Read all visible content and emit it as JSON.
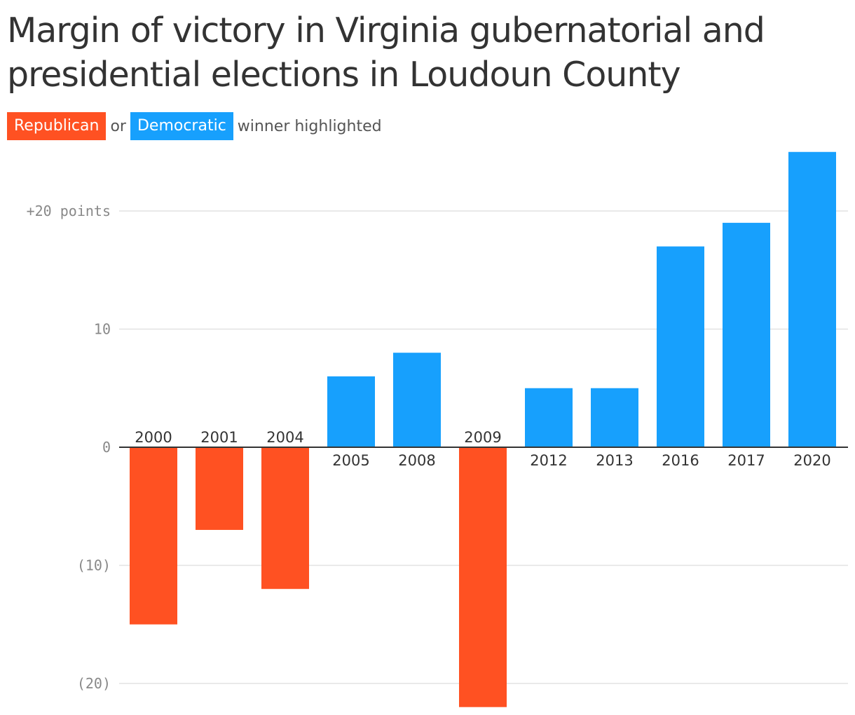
{
  "title": "Margin of victory in Virginia gubernatorial and presidential elections in Loudoun County",
  "legend": {
    "republican_label": "Republican",
    "or_text": "or",
    "democratic_label": "Democratic",
    "suffix_text": "winner highlighted"
  },
  "colors": {
    "republican": "#ff5122",
    "democratic": "#17a0fd",
    "grid": "#e2e2e2",
    "axis": "#333333"
  },
  "chart_data": {
    "type": "bar",
    "categories": [
      "2000",
      "2001",
      "2004",
      "2005",
      "2008",
      "2009",
      "2012",
      "2013",
      "2016",
      "2017",
      "2020"
    ],
    "values": [
      -15,
      -7,
      -12,
      6,
      8,
      -22,
      5,
      5,
      17,
      19,
      25
    ],
    "winners": [
      "Republican",
      "Republican",
      "Republican",
      "Democratic",
      "Democratic",
      "Republican",
      "Democratic",
      "Democratic",
      "Democratic",
      "Democratic",
      "Democratic"
    ],
    "y_ticks": [
      {
        "value": 20,
        "label": "+20 points"
      },
      {
        "value": 10,
        "label": "10"
      },
      {
        "value": 0,
        "label": "0"
      },
      {
        "value": -10,
        "label": "(10)"
      },
      {
        "value": -20,
        "label": "(20)"
      }
    ],
    "ylim": [
      -22.3,
      25.5
    ],
    "grid": true,
    "legend_position": "top-left"
  }
}
